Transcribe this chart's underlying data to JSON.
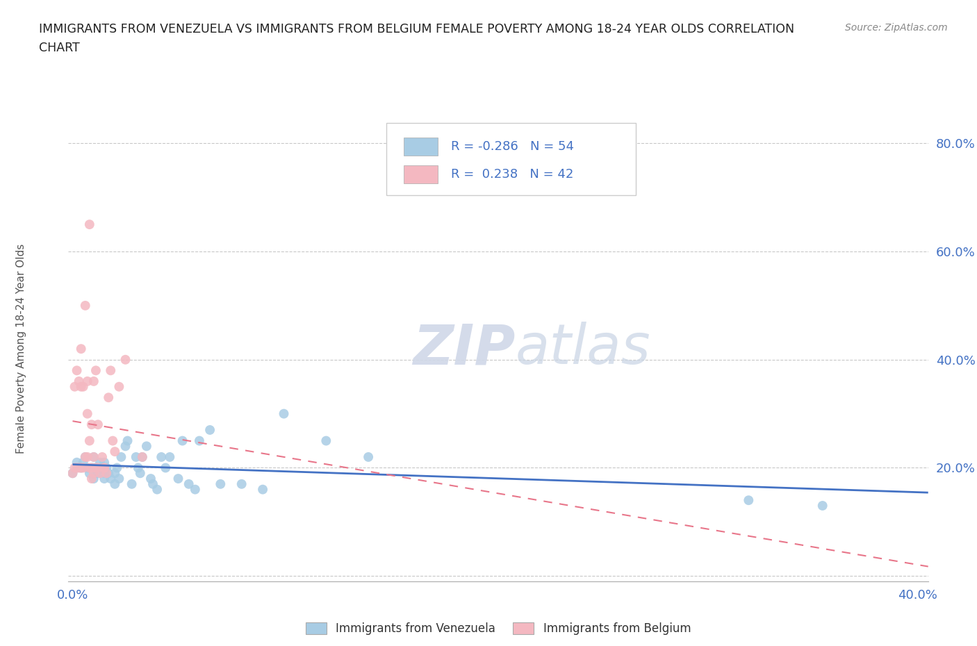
{
  "title_line1": "IMMIGRANTS FROM VENEZUELA VS IMMIGRANTS FROM BELGIUM FEMALE POVERTY AMONG 18-24 YEAR OLDS CORRELATION",
  "title_line2": "CHART",
  "source": "Source: ZipAtlas.com",
  "ylabel": "Female Poverty Among 18-24 Year Olds",
  "xlim": [
    -0.002,
    0.405
  ],
  "ylim": [
    -0.01,
    0.85
  ],
  "xticks": [
    0.0,
    0.4
  ],
  "xticklabels": [
    "0.0%",
    "40.0%"
  ],
  "yticks": [
    0.2,
    0.4,
    0.6,
    0.8
  ],
  "yticklabels": [
    "20.0%",
    "40.0%",
    "60.0%",
    "80.0%"
  ],
  "legend_label1": "Immigrants from Venezuela",
  "legend_label2": "Immigrants from Belgium",
  "R1": "-0.286",
  "N1": "54",
  "R2": "0.238",
  "N2": "42",
  "color1": "#a8cce4",
  "color2": "#f4b8c1",
  "line_color1": "#4472c4",
  "line_color2": "#e8768a",
  "background_color": "#ffffff",
  "grid_color": "#c8c8c8",
  "venezuela_x": [
    0.0,
    0.002,
    0.004,
    0.005,
    0.006,
    0.007,
    0.008,
    0.009,
    0.01,
    0.01,
    0.01,
    0.011,
    0.012,
    0.013,
    0.014,
    0.015,
    0.015,
    0.015,
    0.016,
    0.017,
    0.018,
    0.02,
    0.02,
    0.021,
    0.022,
    0.023,
    0.025,
    0.026,
    0.028,
    0.03,
    0.031,
    0.032,
    0.033,
    0.035,
    0.037,
    0.038,
    0.04,
    0.042,
    0.044,
    0.046,
    0.05,
    0.052,
    0.055,
    0.058,
    0.06,
    0.065,
    0.07,
    0.08,
    0.09,
    0.1,
    0.12,
    0.14,
    0.32,
    0.355
  ],
  "venezuela_y": [
    0.19,
    0.21,
    0.2,
    0.21,
    0.22,
    0.2,
    0.19,
    0.2,
    0.18,
    0.2,
    0.22,
    0.2,
    0.19,
    0.21,
    0.2,
    0.18,
    0.19,
    0.21,
    0.2,
    0.19,
    0.18,
    0.17,
    0.19,
    0.2,
    0.18,
    0.22,
    0.24,
    0.25,
    0.17,
    0.22,
    0.2,
    0.19,
    0.22,
    0.24,
    0.18,
    0.17,
    0.16,
    0.22,
    0.2,
    0.22,
    0.18,
    0.25,
    0.17,
    0.16,
    0.25,
    0.27,
    0.17,
    0.17,
    0.16,
    0.3,
    0.25,
    0.22,
    0.14,
    0.13
  ],
  "belgium_x": [
    0.0,
    0.001,
    0.001,
    0.002,
    0.002,
    0.003,
    0.003,
    0.004,
    0.004,
    0.004,
    0.005,
    0.005,
    0.006,
    0.006,
    0.007,
    0.007,
    0.007,
    0.008,
    0.008,
    0.008,
    0.009,
    0.009,
    0.009,
    0.01,
    0.01,
    0.01,
    0.011,
    0.011,
    0.012,
    0.012,
    0.013,
    0.014,
    0.015,
    0.015,
    0.016,
    0.017,
    0.018,
    0.019,
    0.02,
    0.022,
    0.025,
    0.033
  ],
  "belgium_y": [
    0.19,
    0.2,
    0.35,
    0.2,
    0.38,
    0.2,
    0.36,
    0.2,
    0.35,
    0.42,
    0.2,
    0.35,
    0.22,
    0.5,
    0.22,
    0.3,
    0.36,
    0.2,
    0.25,
    0.65,
    0.18,
    0.2,
    0.28,
    0.19,
    0.22,
    0.36,
    0.2,
    0.38,
    0.2,
    0.28,
    0.19,
    0.22,
    0.2,
    0.2,
    0.19,
    0.33,
    0.38,
    0.25,
    0.23,
    0.35,
    0.4,
    0.22
  ]
}
